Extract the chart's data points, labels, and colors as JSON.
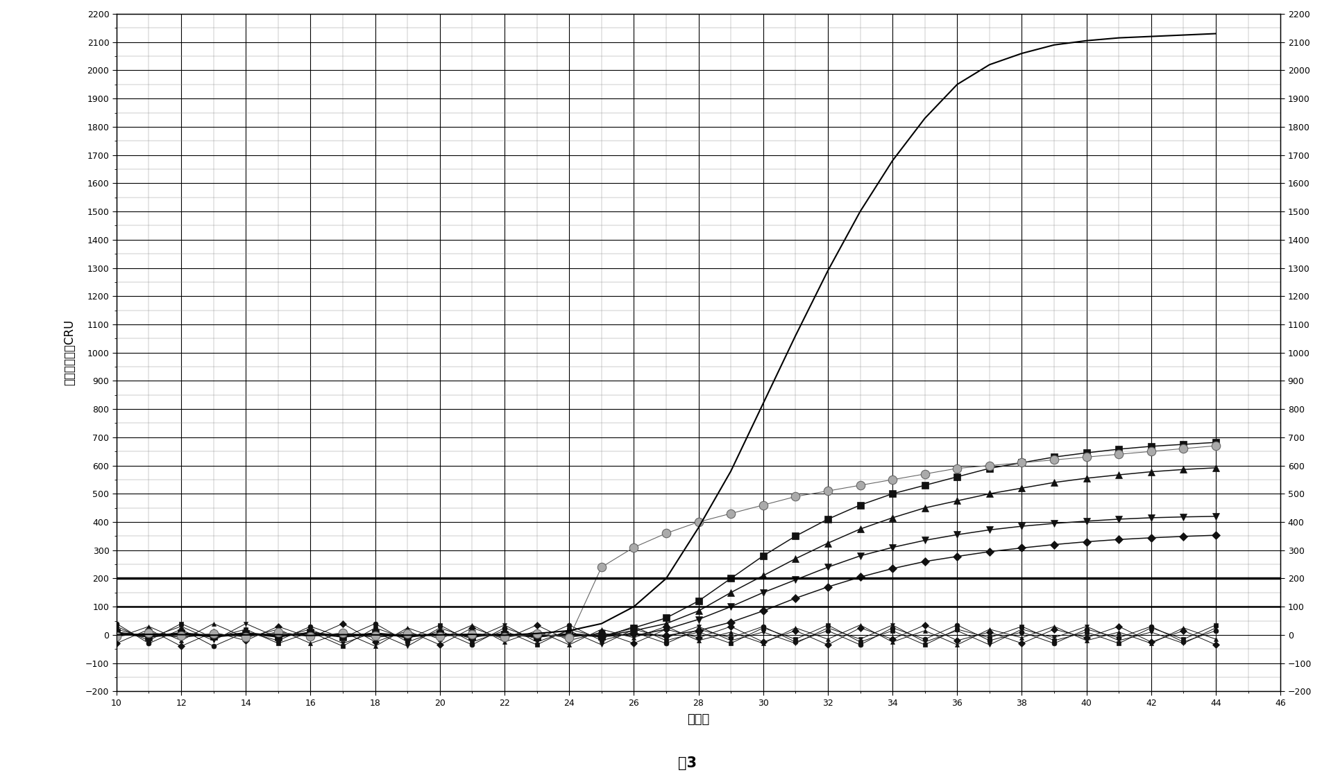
{
  "title": "图3",
  "xlabel": "循环数",
  "ylabel_chars": [
    "相",
    "对",
    "荧",
    "光",
    "强",
    "度",
    "C",
    "R",
    "U"
  ],
  "xlim": [
    10,
    46
  ],
  "ylim": [
    -200,
    2200
  ],
  "yticks": [
    -200,
    -100,
    0,
    100,
    200,
    300,
    400,
    500,
    600,
    700,
    800,
    900,
    1000,
    1100,
    1200,
    1300,
    1400,
    1500,
    1600,
    1700,
    1800,
    1900,
    2000,
    2100,
    2200
  ],
  "xticks": [
    10,
    12,
    14,
    16,
    18,
    20,
    22,
    24,
    26,
    28,
    30,
    32,
    34,
    36,
    38,
    40,
    42,
    44,
    46
  ],
  "threshold_low": 100,
  "threshold_high": 200,
  "bg_color": "#ffffff",
  "x_cycles": [
    10,
    11,
    12,
    13,
    14,
    15,
    16,
    17,
    18,
    19,
    20,
    21,
    22,
    23,
    24,
    25,
    26,
    27,
    28,
    29,
    30,
    31,
    32,
    33,
    34,
    35,
    36,
    37,
    38,
    39,
    40,
    41,
    42,
    43,
    44
  ],
  "y_main_line": [
    0,
    2,
    1,
    -1,
    0,
    1,
    -2,
    1,
    0,
    -1,
    0,
    2,
    -1,
    5,
    15,
    40,
    100,
    200,
    380,
    580,
    820,
    1060,
    1290,
    1500,
    1680,
    1830,
    1950,
    2020,
    2060,
    2090,
    2105,
    2115,
    2120,
    2125,
    2130
  ],
  "y_gray_circles": [
    -5,
    8,
    -3,
    5,
    -8,
    10,
    -5,
    7,
    -3,
    4,
    -6,
    3,
    -8,
    5,
    -10,
    240,
    310,
    360,
    400,
    430,
    460,
    490,
    510,
    530,
    550,
    570,
    590,
    600,
    610,
    620,
    630,
    640,
    650,
    660,
    670
  ],
  "y_sq": [
    10,
    -5,
    8,
    -3,
    5,
    -8,
    10,
    -5,
    7,
    -3,
    4,
    -6,
    3,
    -8,
    5,
    -5,
    25,
    60,
    120,
    200,
    280,
    350,
    410,
    460,
    500,
    530,
    560,
    590,
    610,
    630,
    645,
    658,
    668,
    675,
    682
  ],
  "y_tri": [
    5,
    -8,
    3,
    -5,
    8,
    -3,
    5,
    -8,
    3,
    -5,
    4,
    -6,
    2,
    -7,
    4,
    -4,
    15,
    40,
    85,
    150,
    210,
    270,
    325,
    375,
    415,
    450,
    475,
    500,
    520,
    540,
    555,
    567,
    578,
    586,
    592
  ],
  "y_inv": [
    -3,
    5,
    -8,
    3,
    -5,
    8,
    -3,
    5,
    -8,
    3,
    -5,
    4,
    -6,
    2,
    -7,
    4,
    -3,
    20,
    55,
    100,
    150,
    195,
    240,
    280,
    310,
    335,
    355,
    372,
    385,
    395,
    403,
    410,
    415,
    418,
    420
  ],
  "y_dia": [
    8,
    -3,
    5,
    -8,
    3,
    -5,
    8,
    -3,
    5,
    -8,
    3,
    -5,
    4,
    -6,
    2,
    -7,
    4,
    -2,
    15,
    45,
    85,
    130,
    170,
    205,
    235,
    260,
    278,
    295,
    308,
    320,
    330,
    338,
    344,
    349,
    353
  ],
  "y_flat1": [
    30,
    -20,
    40,
    -10,
    20,
    -30,
    10,
    -40,
    25,
    -15,
    35,
    -25,
    15,
    -35,
    20,
    -10,
    30,
    -20,
    10,
    -30,
    25,
    -15,
    35,
    -25,
    15,
    -35,
    20,
    -10,
    30,
    -20,
    10,
    -30,
    25,
    -15,
    35
  ],
  "y_flat2": [
    -10,
    30,
    -20,
    40,
    -10,
    20,
    -30,
    10,
    -40,
    25,
    -15,
    35,
    -25,
    15,
    -35,
    20,
    -10,
    30,
    -20,
    10,
    -30,
    25,
    -15,
    35,
    -25,
    15,
    -35,
    20,
    -10,
    30,
    -20,
    10,
    -30,
    25,
    -15
  ],
  "y_flat3": [
    20,
    -10,
    30,
    -20,
    40,
    -10,
    20,
    -30,
    10,
    -40,
    25,
    -15,
    35,
    -25,
    15,
    -35,
    20,
    -10,
    30,
    -20,
    10,
    -30,
    25,
    -15,
    35,
    -25,
    15,
    -35,
    20,
    -10,
    30,
    -20,
    10,
    -30,
    25
  ],
  "y_flat4": [
    -30,
    20,
    -40,
    10,
    -20,
    30,
    -10,
    40,
    -25,
    15,
    -35,
    25,
    -15,
    35,
    -20,
    10,
    -30,
    20,
    -10,
    30,
    -25,
    15,
    -35,
    25,
    -15,
    35,
    -20,
    10,
    -30,
    20,
    -10,
    30,
    -25,
    15,
    -35
  ],
  "y_flat5": [
    40,
    -30,
    20,
    -40,
    10,
    -20,
    30,
    -10,
    40,
    -25,
    15,
    -35,
    25,
    -15,
    35,
    -20,
    10,
    -30,
    20,
    -10,
    30,
    -25,
    15,
    -35,
    25,
    -15,
    35,
    -20,
    10,
    -30,
    20,
    -10,
    30,
    -25,
    15
  ]
}
